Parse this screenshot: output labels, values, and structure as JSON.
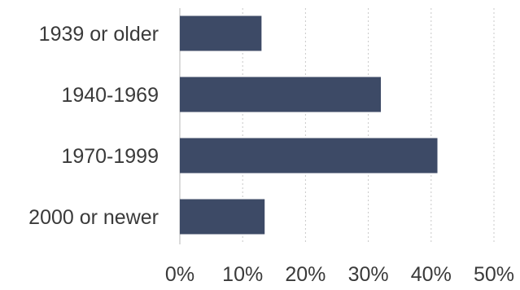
{
  "chart_data": {
    "type": "bar",
    "orientation": "horizontal",
    "categories": [
      "1939 or older",
      "1940-1969",
      "1970-1999",
      "2000 or newer"
    ],
    "values": [
      13,
      32,
      41,
      13.5
    ],
    "value_unit": "%",
    "xlim": [
      0,
      50
    ],
    "xticks": [
      "0%",
      "10%",
      "20%",
      "30%",
      "40%",
      "50%"
    ],
    "grid": "vertical dotted",
    "bar_color": "#3d4a66",
    "title": "",
    "xlabel": "",
    "ylabel": ""
  }
}
